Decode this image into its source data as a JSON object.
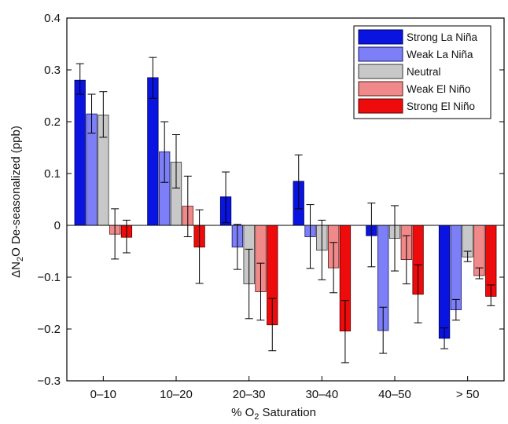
{
  "chart_data": {
    "type": "bar",
    "xlabel_main": "% O",
    "xlabel_sub": "2",
    "xlabel_rest": " Saturation",
    "ylabel_main": "ΔN",
    "ylabel_sub": "2",
    "ylabel_rest": "O De-seasonalized (ppb)",
    "ylim": [
      -0.3,
      0.4
    ],
    "yticks": [
      -0.3,
      -0.2,
      -0.1,
      0,
      0.1,
      0.2,
      0.3,
      0.4
    ],
    "ytick_labels": [
      "−0.3",
      "−0.2",
      "−0.1",
      "0",
      "0.1",
      "0.2",
      "0.3",
      "0.4"
    ],
    "categories": [
      "0–10",
      "10–20",
      "20–30",
      "30–40",
      "40–50",
      "> 50"
    ],
    "legend_position": "top-right",
    "grid": false,
    "series": [
      {
        "name": "Strong La Niña",
        "color": "#0a14e0",
        "edge": "#00005a",
        "values": [
          0.28,
          0.285,
          0.055,
          0.085,
          -0.02,
          -0.218
        ],
        "err_low": [
          0.253,
          0.245,
          0.005,
          0.032,
          -0.08,
          -0.238
        ],
        "err_high": [
          0.312,
          0.324,
          0.103,
          0.136,
          0.043,
          -0.198
        ]
      },
      {
        "name": "Weak La Niña",
        "color": "#7c7ff5",
        "edge": "#1a1a6a",
        "values": [
          0.215,
          0.142,
          -0.042,
          -0.022,
          -0.203,
          -0.163
        ],
        "err_low": [
          0.178,
          0.083,
          -0.085,
          -0.083,
          -0.247,
          -0.183
        ],
        "err_high": [
          0.253,
          0.2,
          0.002,
          0.04,
          -0.158,
          -0.143
        ]
      },
      {
        "name": "Neutral",
        "color": "#c8c8c8",
        "edge": "#333333",
        "values": [
          0.213,
          0.122,
          -0.113,
          -0.048,
          -0.025,
          -0.061
        ],
        "err_low": [
          0.17,
          0.072,
          -0.18,
          -0.105,
          -0.088,
          -0.07
        ],
        "err_high": [
          0.258,
          0.175,
          -0.046,
          0.01,
          0.038,
          -0.05
        ]
      },
      {
        "name": "Weak El Niño",
        "color": "#f08a8a",
        "edge": "#5a1a1a",
        "values": [
          -0.017,
          0.037,
          -0.128,
          -0.082,
          -0.066,
          -0.097
        ],
        "err_low": [
          -0.065,
          -0.022,
          -0.183,
          -0.13,
          -0.113,
          -0.103
        ],
        "err_high": [
          0.032,
          0.095,
          -0.073,
          -0.033,
          -0.02,
          -0.082
        ]
      },
      {
        "name": "Strong El Niño",
        "color": "#ee0b0b",
        "edge": "#5a0000",
        "values": [
          -0.023,
          -0.042,
          -0.192,
          -0.204,
          -0.133,
          -0.137
        ],
        "err_low": [
          -0.053,
          -0.112,
          -0.242,
          -0.265,
          -0.188,
          -0.155
        ],
        "err_high": [
          0.01,
          0.03,
          -0.141,
          -0.145,
          -0.076,
          -0.115
        ]
      }
    ]
  }
}
